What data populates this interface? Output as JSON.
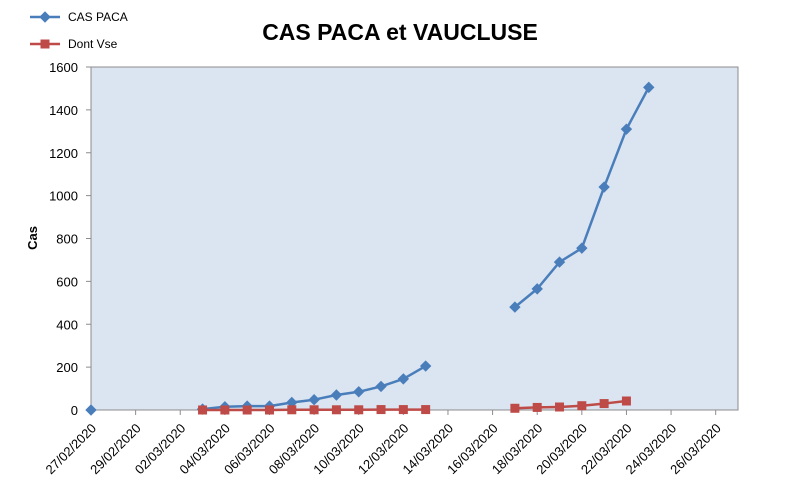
{
  "chart_data": {
    "type": "line",
    "title": "CAS PACA et VAUCLUSE",
    "ylabel": "Cas",
    "xlabel": "",
    "ylim": [
      0,
      1600
    ],
    "yticks": [
      0,
      200,
      400,
      600,
      800,
      1000,
      1200,
      1400,
      1600
    ],
    "xlim": [
      "27/02/2020",
      "27/03/2020"
    ],
    "xticks": [
      "27/02/2020",
      "29/02/2020",
      "02/03/2020",
      "04/03/2020",
      "06/03/2020",
      "08/03/2020",
      "10/03/2020",
      "12/03/2020",
      "14/03/2020",
      "16/03/2020",
      "18/03/2020",
      "20/03/2020",
      "22/03/2020",
      "24/03/2020",
      "26/03/2020"
    ],
    "grid": false,
    "legend": "top-left",
    "plot_background": "#dbe5f1",
    "series": [
      {
        "name": "CAS PACA",
        "color": "#4a7ebb",
        "marker": "diamond",
        "points": [
          {
            "x": "27/02/2020",
            "y": 0
          },
          {
            "x": "03/03/2020",
            "y": 4
          },
          {
            "x": "04/03/2020",
            "y": 15
          },
          {
            "x": "05/03/2020",
            "y": 18
          },
          {
            "x": "06/03/2020",
            "y": 18
          },
          {
            "x": "07/03/2020",
            "y": 35
          },
          {
            "x": "08/03/2020",
            "y": 48
          },
          {
            "x": "09/03/2020",
            "y": 70
          },
          {
            "x": "10/03/2020",
            "y": 85
          },
          {
            "x": "11/03/2020",
            "y": 110
          },
          {
            "x": "12/03/2020",
            "y": 145
          },
          {
            "x": "13/03/2020",
            "y": 205
          },
          {
            "x": "17/03/2020",
            "y": 480
          },
          {
            "x": "18/03/2020",
            "y": 565
          },
          {
            "x": "19/03/2020",
            "y": 690
          },
          {
            "x": "20/03/2020",
            "y": 755
          },
          {
            "x": "21/03/2020",
            "y": 1040
          },
          {
            "x": "22/03/2020",
            "y": 1310
          },
          {
            "x": "23/03/2020",
            "y": 1505
          }
        ]
      },
      {
        "name": "Dont Vse",
        "color": "#be4b48",
        "marker": "square",
        "points": [
          {
            "x": "03/03/2020",
            "y": 0
          },
          {
            "x": "04/03/2020",
            "y": 0
          },
          {
            "x": "05/03/2020",
            "y": 0
          },
          {
            "x": "06/03/2020",
            "y": 0
          },
          {
            "x": "07/03/2020",
            "y": 1
          },
          {
            "x": "08/03/2020",
            "y": 1
          },
          {
            "x": "09/03/2020",
            "y": 1
          },
          {
            "x": "10/03/2020",
            "y": 1
          },
          {
            "x": "11/03/2020",
            "y": 2
          },
          {
            "x": "12/03/2020",
            "y": 2
          },
          {
            "x": "13/03/2020",
            "y": 2
          },
          {
            "x": "17/03/2020",
            "y": 8
          },
          {
            "x": "18/03/2020",
            "y": 12
          },
          {
            "x": "19/03/2020",
            "y": 14
          },
          {
            "x": "20/03/2020",
            "y": 20
          },
          {
            "x": "21/03/2020",
            "y": 30
          },
          {
            "x": "22/03/2020",
            "y": 42
          }
        ]
      }
    ]
  }
}
